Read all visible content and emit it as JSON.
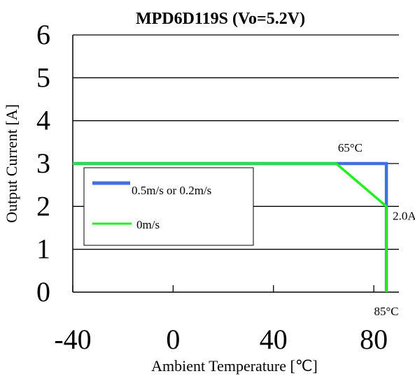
{
  "chart_data": {
    "type": "line",
    "title": "MPD6D119S  (Vo=5.2V)",
    "xlabel": "Ambient Temperature [℃]",
    "ylabel": "Output Current [A]",
    "xlim": [
      -40,
      90
    ],
    "ylim": [
      0,
      6
    ],
    "xticks": [
      -40,
      0,
      40,
      80
    ],
    "xtick_labels": [
      "-40",
      "0",
      "40",
      "80"
    ],
    "yticks": [
      0,
      1,
      2,
      3,
      4,
      5,
      6
    ],
    "ytick_labels": [
      "0",
      "1",
      "2",
      "3",
      "4",
      "5",
      "6"
    ],
    "grid": "horizontal",
    "legend_position": "left",
    "series": [
      {
        "name": "0.5m/s or 0.2m/s",
        "color": "#3f6fe0",
        "x": [
          -40,
          65,
          85,
          85
        ],
        "y": [
          3,
          3,
          3,
          0
        ]
      },
      {
        "name": "0m/s",
        "color": "#22ee22",
        "x": [
          -40,
          65,
          85,
          85
        ],
        "y": [
          3,
          3,
          2,
          0
        ]
      }
    ],
    "annotations": [
      {
        "text": "65°C",
        "x": 65,
        "y": 3
      },
      {
        "text": "2.0A",
        "x": 85,
        "y": 2
      },
      {
        "text": "85°C",
        "x": 85,
        "y": 0
      }
    ]
  }
}
